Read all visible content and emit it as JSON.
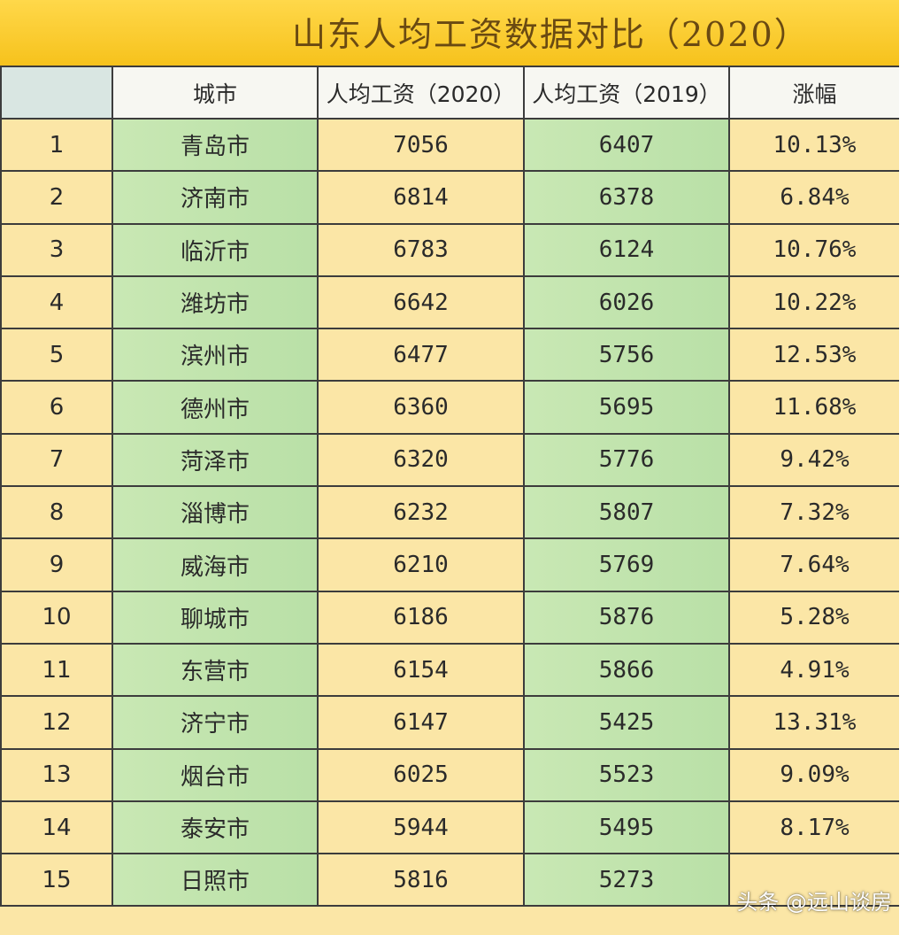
{
  "title": "山东人均工资数据对比（2020）",
  "headers": {
    "rank": "",
    "city": "城市",
    "wage_2020": "人均工资（2020）",
    "wage_2019": "人均工资（2019）",
    "growth": "涨幅"
  },
  "rows": [
    {
      "rank": "1",
      "city": "青岛市",
      "wage_2020": "7056",
      "wage_2019": "6407",
      "growth": "10.13%"
    },
    {
      "rank": "2",
      "city": "济南市",
      "wage_2020": "6814",
      "wage_2019": "6378",
      "growth": "6.84%"
    },
    {
      "rank": "3",
      "city": "临沂市",
      "wage_2020": "6783",
      "wage_2019": "6124",
      "growth": "10.76%"
    },
    {
      "rank": "4",
      "city": "潍坊市",
      "wage_2020": "6642",
      "wage_2019": "6026",
      "growth": "10.22%"
    },
    {
      "rank": "5",
      "city": "滨州市",
      "wage_2020": "6477",
      "wage_2019": "5756",
      "growth": "12.53%"
    },
    {
      "rank": "6",
      "city": "德州市",
      "wage_2020": "6360",
      "wage_2019": "5695",
      "growth": "11.68%"
    },
    {
      "rank": "7",
      "city": "菏泽市",
      "wage_2020": "6320",
      "wage_2019": "5776",
      "growth": "9.42%"
    },
    {
      "rank": "8",
      "city": "淄博市",
      "wage_2020": "6232",
      "wage_2019": "5807",
      "growth": "7.32%"
    },
    {
      "rank": "9",
      "city": "威海市",
      "wage_2020": "6210",
      "wage_2019": "5769",
      "growth": "7.64%"
    },
    {
      "rank": "10",
      "city": "聊城市",
      "wage_2020": "6186",
      "wage_2019": "5876",
      "growth": "5.28%"
    },
    {
      "rank": "11",
      "city": "东营市",
      "wage_2020": "6154",
      "wage_2019": "5866",
      "growth": "4.91%"
    },
    {
      "rank": "12",
      "city": "济宁市",
      "wage_2020": "6147",
      "wage_2019": "5425",
      "growth": "13.31%"
    },
    {
      "rank": "13",
      "city": "烟台市",
      "wage_2020": "6025",
      "wage_2019": "5523",
      "growth": "9.09%"
    },
    {
      "rank": "14",
      "city": "泰安市",
      "wage_2020": "5944",
      "wage_2019": "5495",
      "growth": "8.17%"
    },
    {
      "rank": "15",
      "city": "日照市",
      "wage_2020": "5816",
      "wage_2019": "5273",
      "growth": ""
    }
  ],
  "watermark": "头条 @远山谈房",
  "colors": {
    "title_bar": "#f6c21c",
    "yellow_cell": "#fbe6a6",
    "green_cell": "#c0e4ad",
    "border": "#3c3c3c"
  }
}
